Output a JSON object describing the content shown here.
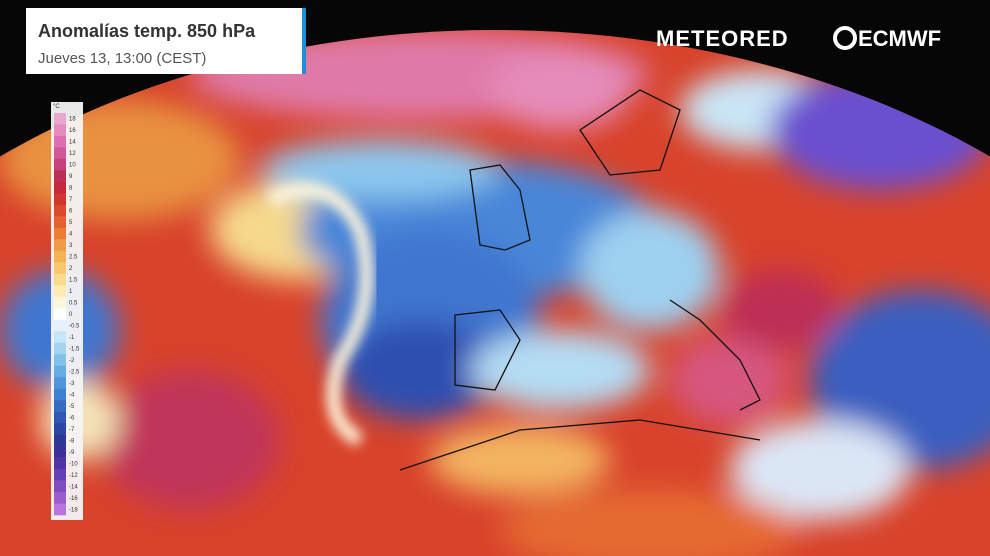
{
  "header": {
    "title": "Anomalías temp. 850 hPa",
    "subtitle": "Jueves 13, 13:00 (CEST)"
  },
  "brand": {
    "meteored": "METEORED",
    "ecmwf": "ECMWF"
  },
  "legend": {
    "unit": "°C",
    "ticks": [
      18,
      16,
      14,
      12,
      10,
      9,
      8,
      7,
      6,
      5,
      4,
      3,
      2.5,
      2,
      1.5,
      1,
      0.5,
      0,
      -0.5,
      -1,
      -1.5,
      -2,
      -2.5,
      -3,
      -4,
      -5,
      -6,
      -7,
      -8,
      -9,
      -10,
      -12,
      -14,
      -16,
      -18
    ],
    "colors": [
      "#e9a6cf",
      "#e48cc0",
      "#dc6fae",
      "#d2569a",
      "#c83f7e",
      "#bd2e55",
      "#c4283a",
      "#d0352e",
      "#db4a2c",
      "#e4622f",
      "#eb7d37",
      "#f19a45",
      "#f5b255",
      "#f8c86c",
      "#fadc8c",
      "#fcebb2",
      "#fdf6dc",
      "#ffffff",
      "#e4f3fb",
      "#c5e6f6",
      "#a3d5f0",
      "#82c1ea",
      "#66ade3",
      "#4f97da",
      "#3f80d0",
      "#356bc3",
      "#2f57b4",
      "#2c46a3",
      "#2e3893",
      "#3a3196",
      "#4d35a6",
      "#6540b5",
      "#7f4cc2",
      "#9a5ccf",
      "#b774db"
    ]
  }
}
